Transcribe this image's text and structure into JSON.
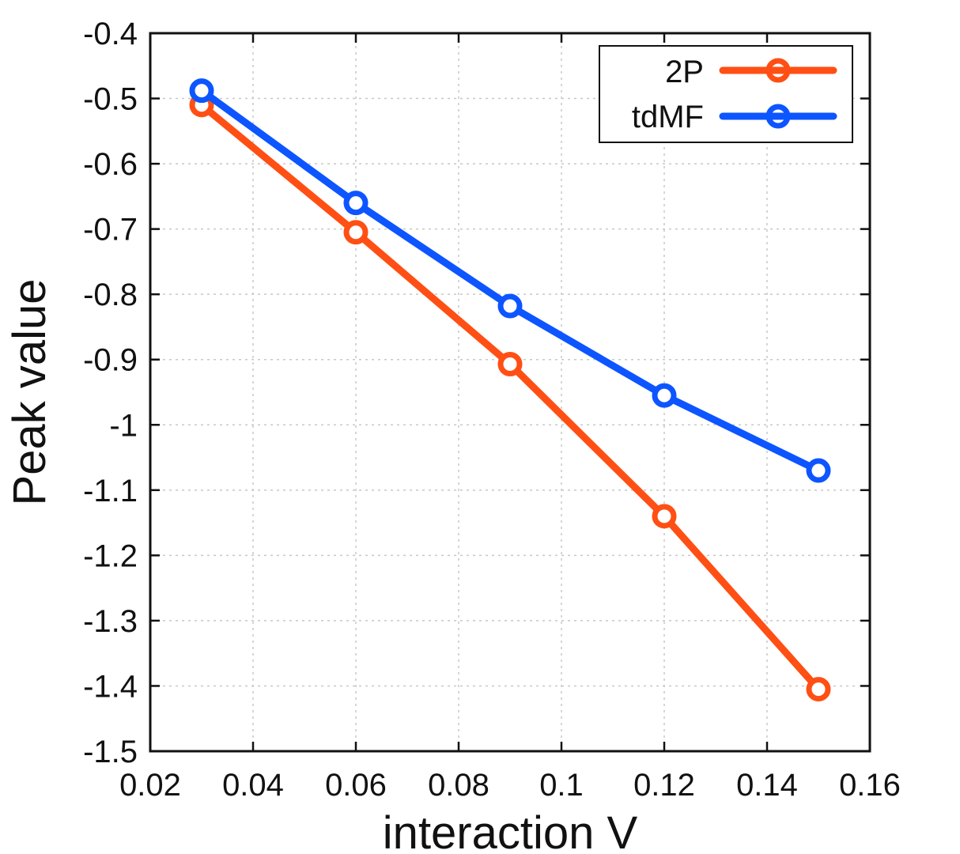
{
  "chart_data": {
    "type": "line",
    "title": "",
    "xlabel": "interaction V",
    "ylabel": "Peak value",
    "xlim": [
      0.02,
      0.16
    ],
    "ylim": [
      -1.5,
      -0.4
    ],
    "x_ticks": [
      0.02,
      0.04,
      0.06,
      0.08,
      0.1,
      0.12,
      0.14,
      0.16
    ],
    "y_ticks": [
      -0.4,
      -0.5,
      -0.6,
      -0.7,
      -0.8,
      -0.9,
      -1,
      -1.1,
      -1.2,
      -1.3,
      -1.4,
      -1.5
    ],
    "x_tick_labels": [
      "0.02",
      "0.04",
      "0.06",
      "0.08",
      "0.1",
      "0.12",
      "0.14",
      "0.16"
    ],
    "y_tick_labels": [
      "-0.4",
      "-0.5",
      "-0.6",
      "-0.7",
      "-0.8",
      "-0.9",
      "-1",
      "-1.1",
      "-1.2",
      "-1.3",
      "-1.4",
      "-1.5"
    ],
    "grid": true,
    "legend_position": "top-right",
    "x": [
      0.03,
      0.06,
      0.09,
      0.12,
      0.15
    ],
    "series": [
      {
        "name": "2P",
        "color": "#ff4f14",
        "values": [
          -0.51,
          -0.705,
          -0.907,
          -1.14,
          -1.405
        ]
      },
      {
        "name": "tdMF",
        "color": "#0d55ff",
        "values": [
          -0.488,
          -0.66,
          -0.818,
          -0.955,
          -1.07
        ]
      }
    ]
  }
}
